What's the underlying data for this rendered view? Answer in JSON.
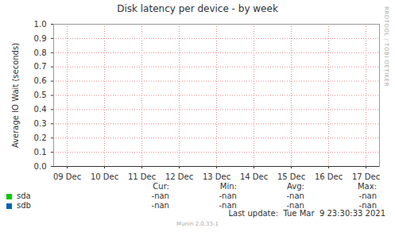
{
  "chart_data": {
    "type": "line",
    "title": "Disk latency per device - by week",
    "y_label": "Average IO Wait (seconds)",
    "categories": [
      "09 Dec",
      "10 Dec",
      "11 Dec",
      "12 Dec",
      "13 Dec",
      "14 Dec",
      "15 Dec",
      "16 Dec",
      "17 Dec"
    ],
    "ylim": [
      0,
      1
    ],
    "yticks": [
      {
        "value": 0,
        "label": "0.0"
      },
      {
        "value": 0.1,
        "label": "0.1"
      },
      {
        "value": 0.2,
        "label": "0.2"
      },
      {
        "value": 0.3,
        "label": "0.3"
      },
      {
        "value": 0.4,
        "label": "0.4"
      },
      {
        "value": 0.5,
        "label": "0.5"
      },
      {
        "value": 0.6,
        "label": "0.6"
      },
      {
        "value": 0.7,
        "label": "0.7"
      },
      {
        "value": 0.8,
        "label": "0.8"
      },
      {
        "value": 0.9,
        "label": "0.9"
      },
      {
        "value": 1,
        "label": "1.0"
      }
    ],
    "grid": true,
    "stat_labels": [
      "Cur:",
      "Min:",
      "Avg:",
      "Max:"
    ],
    "series": [
      {
        "name": "sda",
        "color": "#00cc00",
        "values": [
          null,
          null,
          null,
          null,
          null,
          null,
          null,
          null,
          null
        ],
        "stats": [
          "-nan",
          "-nan",
          "-nan",
          "-nan"
        ]
      },
      {
        "name": "sdb",
        "color": "#0066b3",
        "values": [
          null,
          null,
          null,
          null,
          null,
          null,
          null,
          null,
          null
        ],
        "stats": [
          "-nan",
          "-nan",
          "-nan",
          "-nan"
        ]
      }
    ],
    "footer": "Last update:  Tue Mar  9 23:30:33 2021",
    "generator": "Munin 2.0.33-1",
    "side_text": "RRDTOOL / TOBI OETIKER"
  }
}
